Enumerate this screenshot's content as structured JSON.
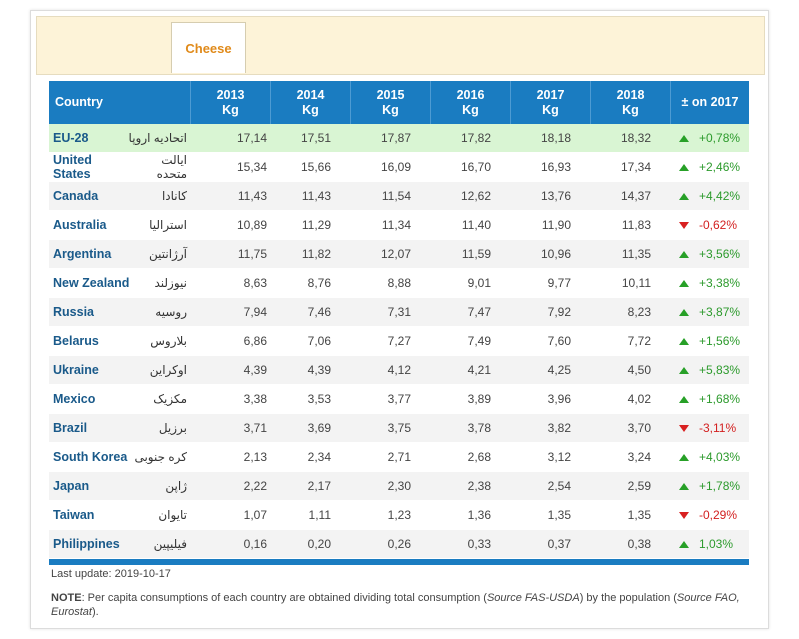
{
  "tabs": [
    {
      "label": "Cheese"
    }
  ],
  "table": {
    "headers": {
      "country": "Country",
      "y2013": [
        "2013",
        "Kg"
      ],
      "y2014": [
        "2014",
        "Kg"
      ],
      "y2015": [
        "2015",
        "Kg"
      ],
      "y2016": [
        "2016",
        "Kg"
      ],
      "y2017": [
        "2017",
        "Kg"
      ],
      "y2018": [
        "2018",
        "Kg"
      ],
      "change": "± on 2017"
    },
    "rows": [
      {
        "en": "EU-28",
        "fa": "اتحادیه اروپا",
        "values": [
          "17,14",
          "17,51",
          "17,87",
          "17,82",
          "18,18",
          "18,32"
        ],
        "change": "+0,78%",
        "dir": "up",
        "highlight": true
      },
      {
        "en": "United States",
        "fa": "ایالت متحده",
        "values": [
          "15,34",
          "15,66",
          "16,09",
          "16,70",
          "16,93",
          "17,34"
        ],
        "change": "+2,46%",
        "dir": "up"
      },
      {
        "en": "Canada",
        "fa": "کانادا",
        "values": [
          "11,43",
          "11,43",
          "11,54",
          "12,62",
          "13,76",
          "14,37"
        ],
        "change": "+4,42%",
        "dir": "up"
      },
      {
        "en": "Australia",
        "fa": "استرالیا",
        "values": [
          "10,89",
          "11,29",
          "11,34",
          "11,40",
          "11,90",
          "11,83"
        ],
        "change": "-0,62%",
        "dir": "down"
      },
      {
        "en": "Argentina",
        "fa": "آرژانتین",
        "values": [
          "11,75",
          "11,82",
          "12,07",
          "11,59",
          "10,96",
          "11,35"
        ],
        "change": "+3,56%",
        "dir": "up"
      },
      {
        "en": "New Zealand",
        "fa": "نیوزلند",
        "values": [
          "8,63",
          "8,76",
          "8,88",
          "9,01",
          "9,77",
          "10,11"
        ],
        "change": "+3,38%",
        "dir": "up"
      },
      {
        "en": "Russia",
        "fa": "روسیه",
        "values": [
          "7,94",
          "7,46",
          "7,31",
          "7,47",
          "7,92",
          "8,23"
        ],
        "change": "+3,87%",
        "dir": "up"
      },
      {
        "en": "Belarus",
        "fa": "بلاروس",
        "values": [
          "6,86",
          "7,06",
          "7,27",
          "7,49",
          "7,60",
          "7,72"
        ],
        "change": "+1,56%",
        "dir": "up"
      },
      {
        "en": "Ukraine",
        "fa": "اوکراین",
        "values": [
          "4,39",
          "4,39",
          "4,12",
          "4,21",
          "4,25",
          "4,50"
        ],
        "change": "+5,83%",
        "dir": "up"
      },
      {
        "en": "Mexico",
        "fa": "مکزیک",
        "values": [
          "3,38",
          "3,53",
          "3,77",
          "3,89",
          "3,96",
          "4,02"
        ],
        "change": "+1,68%",
        "dir": "up"
      },
      {
        "en": "Brazil",
        "fa": "برزیل",
        "values": [
          "3,71",
          "3,69",
          "3,75",
          "3,78",
          "3,82",
          "3,70"
        ],
        "change": "-3,11%",
        "dir": "down"
      },
      {
        "en": "South Korea",
        "fa": "کره جنوبی",
        "values": [
          "2,13",
          "2,34",
          "2,71",
          "2,68",
          "3,12",
          "3,24"
        ],
        "change": "+4,03%",
        "dir": "up"
      },
      {
        "en": "Japan",
        "fa": "ژاپن",
        "values": [
          "2,22",
          "2,17",
          "2,30",
          "2,38",
          "2,54",
          "2,59"
        ],
        "change": "+1,78%",
        "dir": "up"
      },
      {
        "en": "Taiwan",
        "fa": "تایوان",
        "values": [
          "1,07",
          "1,11",
          "1,23",
          "1,36",
          "1,35",
          "1,35"
        ],
        "change": "-0,29%",
        "dir": "down"
      },
      {
        "en": "Philippines",
        "fa": "فیلیپین",
        "values": [
          "0,16",
          "0,20",
          "0,26",
          "0,33",
          "0,37",
          "0,38"
        ],
        "change": "1,03%",
        "dir": "up"
      }
    ]
  },
  "footer": {
    "last_update": "Last update: 2019-10-17",
    "note_label": "NOTE",
    "note_parts": [
      ": Per capita consumptions of each country are obtained dividing total consumption (",
      "Source FAS-USDA",
      ") by the population (",
      "Source FAO, Eurostat",
      ")."
    ]
  },
  "colors": {
    "header": "#1a7cc1",
    "highlight": "#d9f5d3",
    "up": "#27a027",
    "down": "#d82020",
    "tab_text": "#e08a1a"
  },
  "icons": {
    "up": "triangle-up-icon",
    "down": "triangle-down-icon"
  }
}
